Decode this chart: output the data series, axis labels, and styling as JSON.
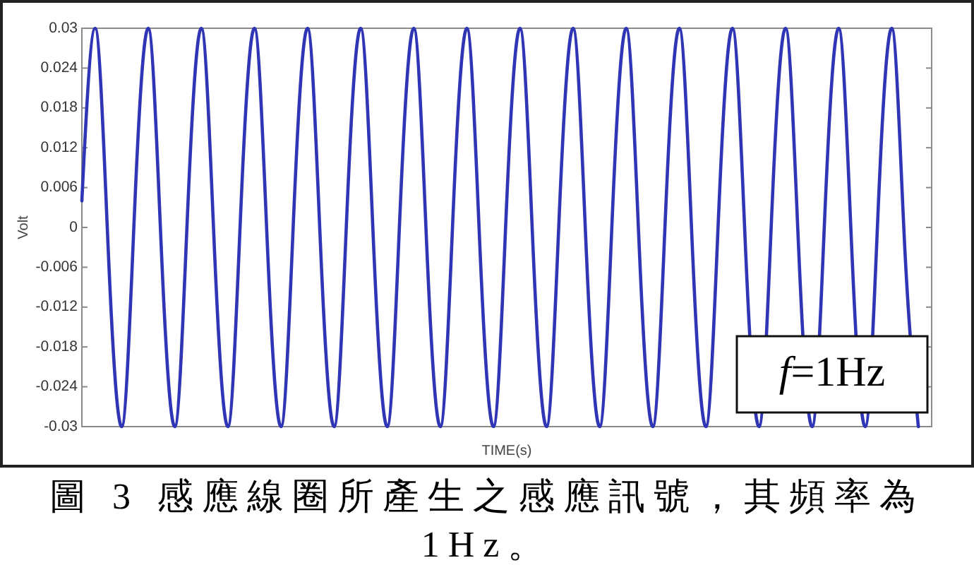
{
  "chart_data": {
    "type": "line",
    "xlabel": "TIME(s)",
    "ylabel": "Volt",
    "color": "#2f35b5",
    "categories": [
      null,
      null,
      null,
      null,
      null,
      null,
      null,
      null,
      null,
      null,
      null,
      null,
      null,
      null,
      null,
      null,
      null,
      null,
      null,
      null,
      null,
      null,
      null,
      null,
      null,
      null,
      null,
      null,
      null,
      null,
      null,
      null,
      null,
      null,
      null,
      null,
      null,
      null,
      null,
      null,
      null,
      null,
      null,
      null,
      null,
      null,
      null,
      null,
      null,
      null,
      null,
      null,
      null,
      null,
      null,
      null,
      null,
      null,
      null,
      null,
      null,
      null,
      null,
      null
    ],
    "values": [
      0.004,
      0.03,
      -0.004,
      -0.03,
      0.004,
      0.03,
      -0.004,
      -0.03,
      0.004,
      0.03,
      -0.004,
      -0.03,
      0.004,
      0.03,
      -0.004,
      -0.03,
      0.004,
      0.03,
      -0.004,
      -0.03,
      0.004,
      0.03,
      -0.004,
      -0.03,
      0.004,
      0.03,
      -0.004,
      -0.03,
      0.004,
      0.03,
      -0.004,
      -0.03,
      0.004,
      0.03,
      -0.004,
      -0.03,
      0.004,
      0.03,
      -0.004,
      -0.03,
      0.004,
      0.03,
      -0.004,
      -0.03,
      0.004,
      0.03,
      -0.004,
      -0.03,
      0.004,
      0.03,
      -0.004,
      -0.03,
      0.004,
      0.03,
      -0.004,
      -0.03,
      0.004,
      0.03,
      -0.004,
      -0.03,
      0.004,
      0.03,
      -0.004,
      -0.03
    ],
    "ylim": [
      -0.03,
      0.03
    ],
    "yticks": [
      -0.03,
      -0.024,
      -0.018,
      -0.012,
      -0.006,
      0,
      0.006,
      0.012,
      0.018,
      0.024,
      0.03
    ],
    "annotations": [
      "f=1Hz",
      "圖 3 感應線圈所產生之感應訊號，其頻率為 1Hz。"
    ]
  }
}
